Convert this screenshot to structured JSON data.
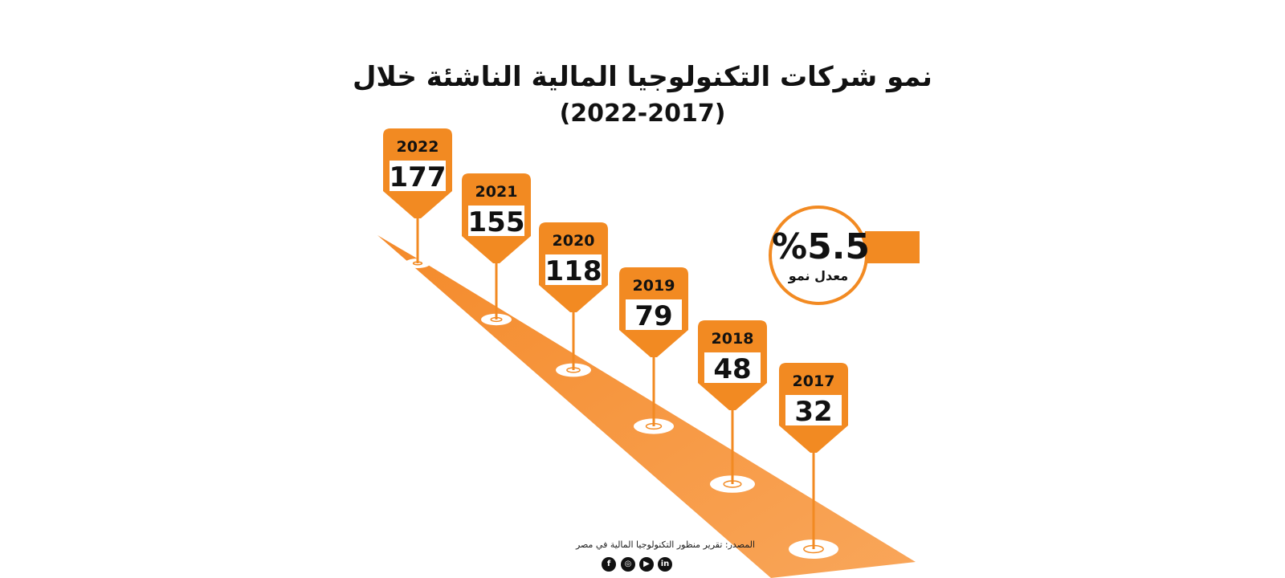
{
  "header": {
    "title_line1": "نمو شركات التكنولوجيا المالية الناشئة خلال",
    "title_line2": "(2022-2017)"
  },
  "chart_data": {
    "type": "infographic-timeline",
    "categories": [
      "2022",
      "2021",
      "2020",
      "2019",
      "2018",
      "2017"
    ],
    "values": [
      177,
      155,
      118,
      79,
      48,
      32
    ],
    "colors": {
      "accent": "#f28a22",
      "road": "#f7a04d",
      "dark": "#111111"
    }
  },
  "growth": {
    "value": "%5.5",
    "label": "معدل نمو"
  },
  "footer": {
    "source": "المصدر: تقرير منظور التكنولوجيا المالية في مصر",
    "social_icons": [
      "facebook-icon",
      "instagram-icon",
      "youtube-icon",
      "linkedin-icon"
    ]
  }
}
